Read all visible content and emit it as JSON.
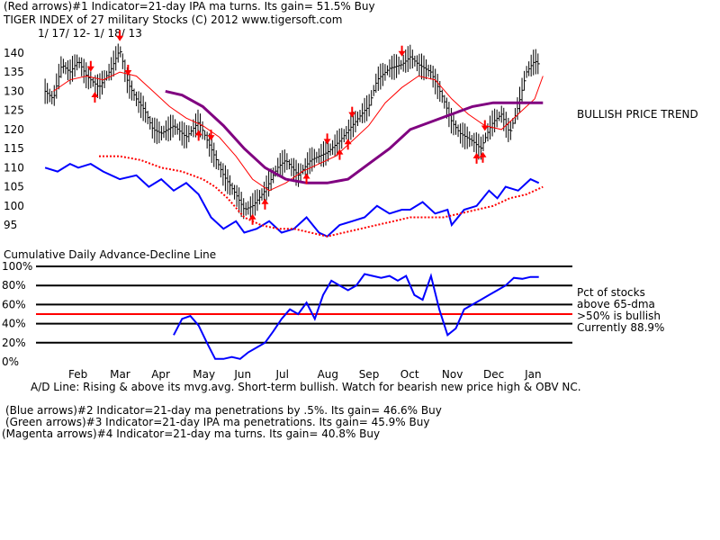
{
  "header": {
    "line1": "(Red arrows)#1 Indicator=21-day IPA ma turns. Its gain= 51.5% Buy",
    "line2": "TIGER INDEX of  27 military Stocks  (C) 2012  www.tigersoft.com",
    "date_range": "1/ 17/ 12- 1/ 18/ 13"
  },
  "annotations": {
    "bullish_trend": "BULLISH PRICE TREND",
    "ad_title": "Cumulative Daily Advance-Decline Line",
    "pct_line1": "Pct of stocks",
    "pct_line2": "above 65-dma",
    "pct_line3": ">50% is bullish",
    "pct_line4": "Currently  88.9%",
    "ad_line_note": "A/D Line: Rising & above its mvg.avg. Short-term bullish. Watch for bearish new price high & OBV NC."
  },
  "footer": {
    "line1": "(Blue arrows)#2 Indicator=21-day ma penetrations by .5%. Its gain= 46.6% Buy",
    "line2": "(Green arrows)#3 Indicator=21-day IPA ma penetrations. Its gain= 45.9% Buy",
    "line3": "(Magenta arrows)#4 Indicator=21-day ma turns. Its gain= 40.8% Buy"
  },
  "colors": {
    "price": "#000000",
    "ma21": "#ff0000",
    "ma65": "#800080",
    "ad_line": "#0000ff",
    "ad_ma": "#ff0000",
    "arrow": "#ff0000",
    "pct": "#0000ff",
    "pct_50": "#ff0000",
    "grid": "#000000"
  },
  "chart_data": [
    {
      "type": "line",
      "title": "TIGER INDEX of 27 military Stocks",
      "ylim": [
        95,
        140
      ],
      "yticks": [
        140,
        135,
        130,
        125,
        120,
        115,
        110,
        105,
        100,
        95
      ],
      "month_labels": [
        "Feb",
        "Mar",
        "Apr",
        "May",
        "Jun",
        "Jul",
        "Aug",
        "Sep",
        "Oct",
        "Nov",
        "Dec",
        "Jan"
      ],
      "month_pos": [
        1,
        2,
        3,
        4,
        5,
        6,
        7,
        8,
        9,
        10,
        11,
        12
      ],
      "xlim": [
        0.2,
        12.3
      ],
      "series": [
        {
          "name": "Price",
          "x": [
            0.2,
            0.4,
            0.6,
            0.8,
            1.0,
            1.2,
            1.5,
            1.8,
            2.0,
            2.2,
            2.4,
            2.6,
            2.8,
            3.0,
            3.3,
            3.6,
            3.9,
            4.2,
            4.5,
            4.8,
            5.0,
            5.2,
            5.5,
            5.8,
            6.0,
            6.3,
            6.6,
            7.0,
            7.3,
            7.6,
            7.9,
            8.0,
            8.2,
            8.5,
            8.8,
            9.0,
            9.2,
            9.5,
            9.8,
            10.0,
            10.2,
            10.5,
            10.7,
            10.9,
            11.0,
            11.2,
            11.4,
            11.6,
            11.8,
            12.0,
            12.1
          ],
          "y": [
            130,
            128,
            137,
            135,
            138,
            134,
            131,
            136,
            141,
            132,
            128,
            125,
            120,
            119,
            121,
            118,
            122,
            115,
            108,
            103,
            99,
            100,
            104,
            110,
            112,
            108,
            112,
            114,
            117,
            121,
            125,
            126,
            133,
            136,
            137,
            139,
            137,
            135,
            128,
            122,
            119,
            117,
            115,
            120,
            122,
            124,
            119,
            126,
            135,
            138,
            137
          ]
        },
        {
          "name": "21-day ma",
          "x": [
            0.4,
            0.8,
            1.2,
            1.6,
            2.0,
            2.4,
            2.8,
            3.2,
            3.6,
            4.0,
            4.4,
            4.8,
            5.2,
            5.6,
            6.0,
            6.4,
            6.8,
            7.2,
            7.6,
            8.0,
            8.4,
            8.8,
            9.2,
            9.6,
            10.0,
            10.4,
            10.8,
            11.2,
            11.6,
            12.0,
            12.2
          ],
          "y": [
            130,
            133,
            134,
            133,
            135,
            134,
            130,
            126,
            123,
            121,
            118,
            113,
            107,
            104,
            106,
            109,
            111,
            113,
            117,
            121,
            127,
            131,
            134,
            133,
            128,
            124,
            121,
            120,
            124,
            128,
            134
          ]
        },
        {
          "name": "65-day ma",
          "x": [
            3.1,
            3.5,
            4.0,
            4.5,
            5.0,
            5.5,
            6.0,
            6.5,
            7.0,
            7.5,
            8.0,
            8.5,
            9.0,
            9.5,
            10.0,
            10.5,
            11.0,
            11.5,
            12.0,
            12.2
          ],
          "y": [
            130,
            129,
            126,
            121,
            115,
            110,
            107,
            106,
            106,
            107,
            111,
            115,
            120,
            122,
            124,
            126,
            127,
            127,
            127,
            127
          ]
        },
        {
          "name": "A/D Line",
          "x": [
            0.2,
            0.5,
            0.8,
            1.0,
            1.3,
            1.6,
            2.0,
            2.4,
            2.7,
            3.0,
            3.3,
            3.6,
            3.9,
            4.2,
            4.5,
            4.8,
            5.0,
            5.3,
            5.6,
            5.9,
            6.2,
            6.5,
            6.8,
            7.0,
            7.3,
            7.6,
            7.9,
            8.2,
            8.5,
            8.8,
            9.0,
            9.3,
            9.6,
            9.9,
            10.0,
            10.3,
            10.6,
            10.9,
            11.1,
            11.3,
            11.6,
            11.9,
            12.1
          ],
          "y": [
            110,
            109,
            111,
            110,
            111,
            109,
            107,
            108,
            105,
            107,
            104,
            106,
            103,
            97,
            94,
            96,
            93,
            94,
            96,
            93,
            94,
            97,
            93,
            92,
            95,
            96,
            97,
            100,
            98,
            99,
            99,
            101,
            98,
            99,
            95,
            99,
            100,
            104,
            102,
            105,
            104,
            107,
            106
          ]
        },
        {
          "name": "A/D moving avg",
          "x": [
            1.5,
            2.0,
            2.5,
            3.0,
            3.5,
            4.0,
            4.3,
            4.6,
            5.0,
            5.4,
            5.8,
            6.2,
            6.6,
            7.0,
            7.4,
            7.8,
            8.2,
            8.6,
            9.0,
            9.4,
            9.8,
            10.2,
            10.6,
            11.0,
            11.4,
            11.8,
            12.2
          ],
          "y": [
            113,
            113,
            112,
            110,
            109,
            107,
            105,
            102,
            97,
            95,
            94,
            94,
            93,
            92,
            93,
            94,
            95,
            96,
            97,
            97,
            97,
            98,
            99,
            100,
            102,
            103,
            105
          ]
        }
      ],
      "red_arrows_down": [
        1.3,
        2.0,
        2.2,
        4.2,
        7.0,
        7.6,
        8.8,
        10.8
      ],
      "red_arrows_up": [
        1.4,
        3.9,
        5.2,
        5.5,
        6.5,
        7.3,
        7.5,
        10.6,
        10.75
      ]
    },
    {
      "type": "line",
      "title": "Pct of stocks above 65-dma",
      "ylim": [
        0,
        100
      ],
      "yticks": [
        "100%",
        "80%",
        "60%",
        "40%",
        "20%",
        "0%"
      ],
      "reference_line": 50,
      "series": [
        {
          "name": "Pct above 65-dma",
          "x": [
            3.3,
            3.5,
            3.7,
            3.9,
            4.1,
            4.3,
            4.5,
            4.7,
            4.9,
            5.1,
            5.3,
            5.5,
            5.7,
            5.9,
            6.1,
            6.3,
            6.5,
            6.7,
            6.9,
            7.1,
            7.3,
            7.5,
            7.7,
            7.9,
            8.1,
            8.3,
            8.5,
            8.7,
            8.9,
            9.1,
            9.3,
            9.5,
            9.7,
            9.9,
            10.1,
            10.3,
            10.5,
            10.7,
            10.9,
            11.1,
            11.3,
            11.5,
            11.7,
            11.9,
            12.1
          ],
          "y": [
            28,
            45,
            48,
            38,
            20,
            3,
            3,
            5,
            3,
            10,
            15,
            20,
            32,
            45,
            55,
            50,
            62,
            45,
            70,
            85,
            80,
            75,
            80,
            92,
            90,
            88,
            90,
            85,
            90,
            70,
            65,
            90,
            55,
            28,
            35,
            55,
            60,
            65,
            70,
            75,
            80,
            88,
            87,
            89,
            89
          ]
        }
      ]
    }
  ]
}
